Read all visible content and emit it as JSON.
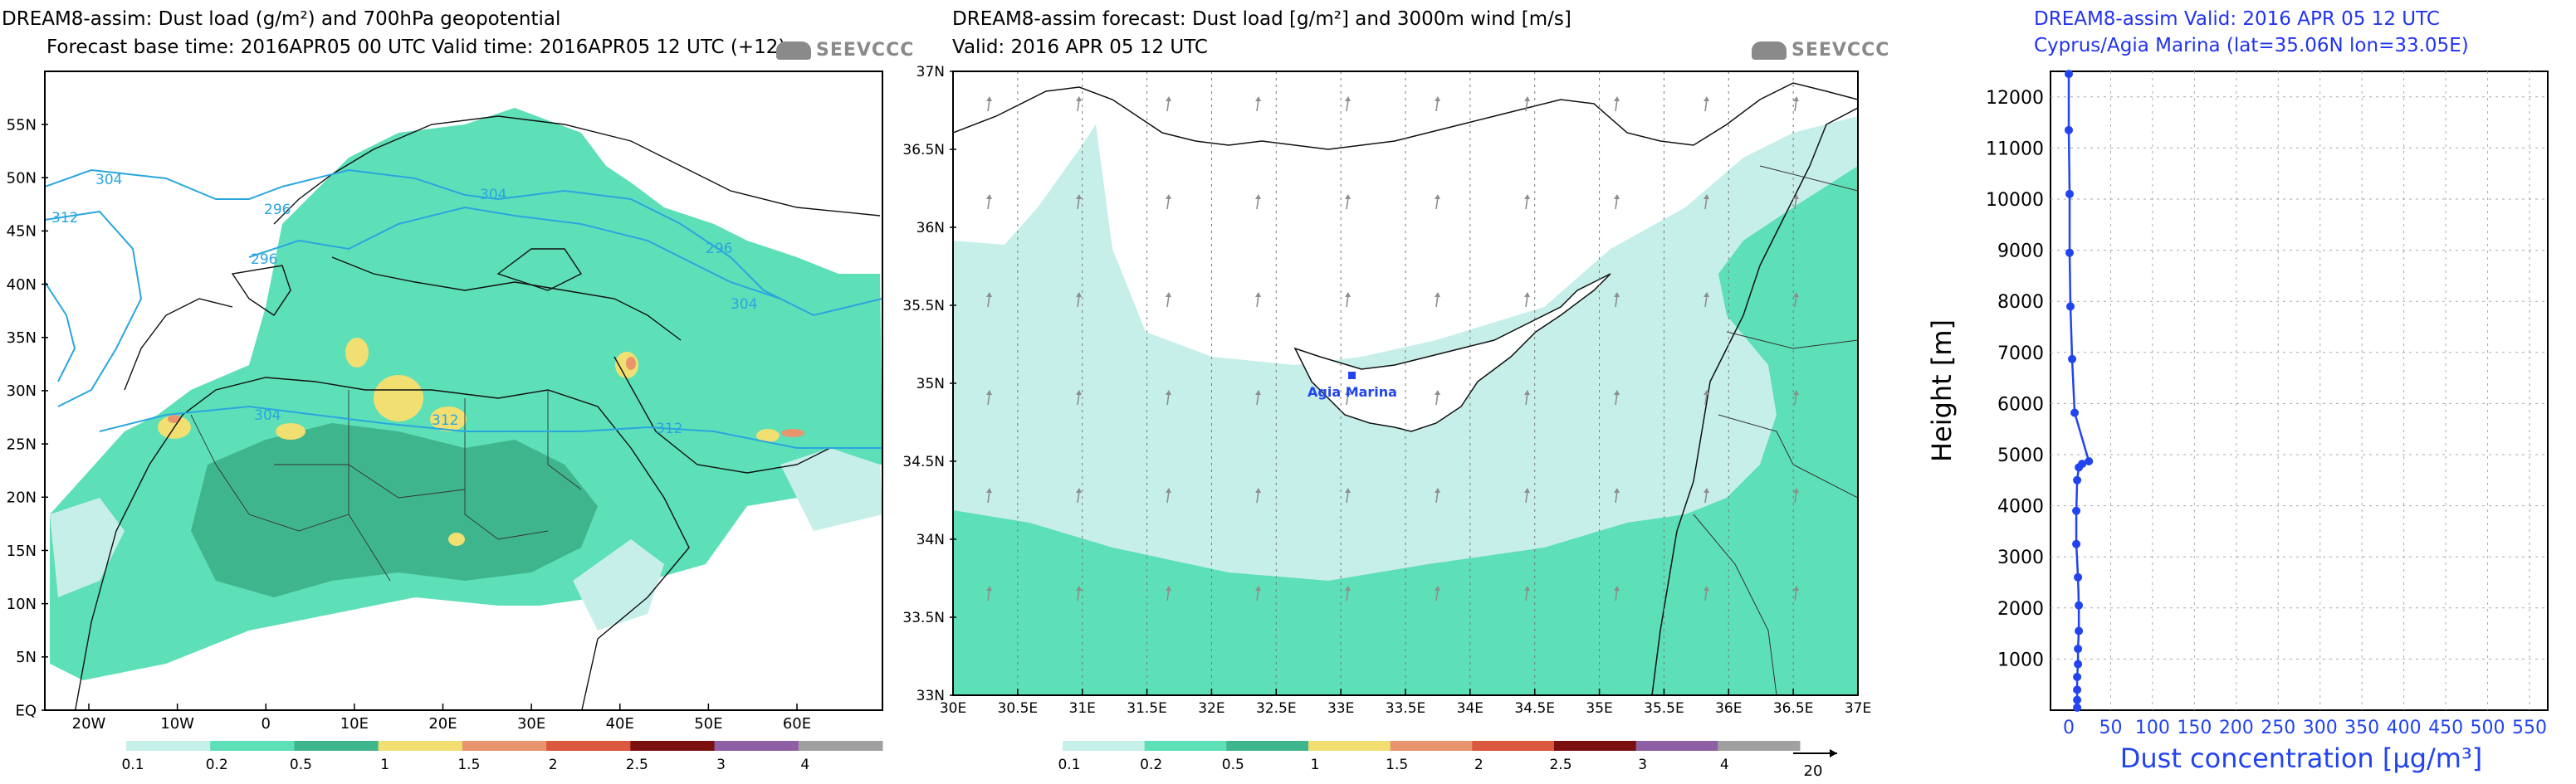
{
  "colors": {
    "light_dust": "#c6efea",
    "mid_dust": "#5ddfb8",
    "dark_dust": "#3fb58e",
    "yellow": "#f1df72",
    "orange": "#e8956e",
    "contour": "#2aa6df",
    "profile": "#2244ee"
  },
  "logo_text": "SEEVCCC",
  "panel1": {
    "title1": "DREAM8-assim: Dust load (g/m²) and 700hPa geopotential",
    "title2": "Forecast base time: 2016APR05 00 UTC   Valid time: 2016APR05 12 UTC   (+12)",
    "x_ticks": [
      "20W",
      "10W",
      "0",
      "10E",
      "20E",
      "30E",
      "40E",
      "50E",
      "60E"
    ],
    "y_ticks": [
      "EQ",
      "5N",
      "10N",
      "15N",
      "20N",
      "25N",
      "30N",
      "35N",
      "40N",
      "45N",
      "50N",
      "55N"
    ],
    "contour_labels": [
      "304",
      "312",
      "296",
      "296",
      "304",
      "296",
      "304",
      "304",
      "312",
      "312"
    ],
    "colorbar_labels": [
      "0.1",
      "0.2",
      "0.5",
      "1",
      "1.5",
      "2",
      "2.5",
      "3",
      "4"
    ]
  },
  "panel2": {
    "title1": "DREAM8-assim forecast: Dust load [g/m²] and 3000m wind [m/s]",
    "title2": "Valid:  2016 APR 05   12 UTC",
    "x_ticks": [
      "30E",
      "30.5E",
      "31E",
      "31.5E",
      "32E",
      "32.5E",
      "33E",
      "33.5E",
      "34E",
      "34.5E",
      "35E",
      "35.5E",
      "36E",
      "36.5E",
      "37E"
    ],
    "y_ticks": [
      "33N",
      "33.5N",
      "34N",
      "34.5N",
      "35N",
      "35.5N",
      "36N",
      "36.5N",
      "37N"
    ],
    "station_label": "Agia  Marina",
    "colorbar_labels": [
      "0.1",
      "0.2",
      "0.5",
      "1",
      "1.5",
      "2",
      "2.5",
      "3",
      "4"
    ],
    "wind_ref_label": "20"
  },
  "chart_data": {
    "type": "line",
    "title": "DREAM8-assim   Valid: 2016 APR 05   12 UTC",
    "subtitle": "Cyprus/Agia Marina (lat=35.06N lon=33.05E)",
    "xlabel": "Dust concentration [µg/m³]",
    "ylabel": "Height  [m]",
    "xlim": [
      0,
      550
    ],
    "ylim": [
      0,
      12500
    ],
    "x_ticks": [
      "0",
      "50",
      "100",
      "150",
      "200",
      "250",
      "300",
      "350",
      "400",
      "450",
      "500",
      "550"
    ],
    "y_ticks": [
      "1000",
      "2000",
      "3000",
      "4000",
      "5000",
      "6000",
      "7000",
      "8000",
      "9000",
      "10000",
      "11000",
      "12000"
    ],
    "grid": true,
    "series": [
      {
        "x": [
          10,
          10,
          10,
          10,
          11,
          11,
          12,
          12,
          11,
          9,
          9,
          10,
          12,
          16,
          24,
          7,
          4,
          2,
          1,
          1,
          0,
          0
        ],
        "y": [
          50,
          200,
          400,
          650,
          900,
          1200,
          1550,
          2050,
          2600,
          3250,
          3900,
          4500,
          4750,
          4820,
          4870,
          5820,
          6870,
          7900,
          8950,
          10100,
          11350,
          12450
        ]
      }
    ]
  }
}
